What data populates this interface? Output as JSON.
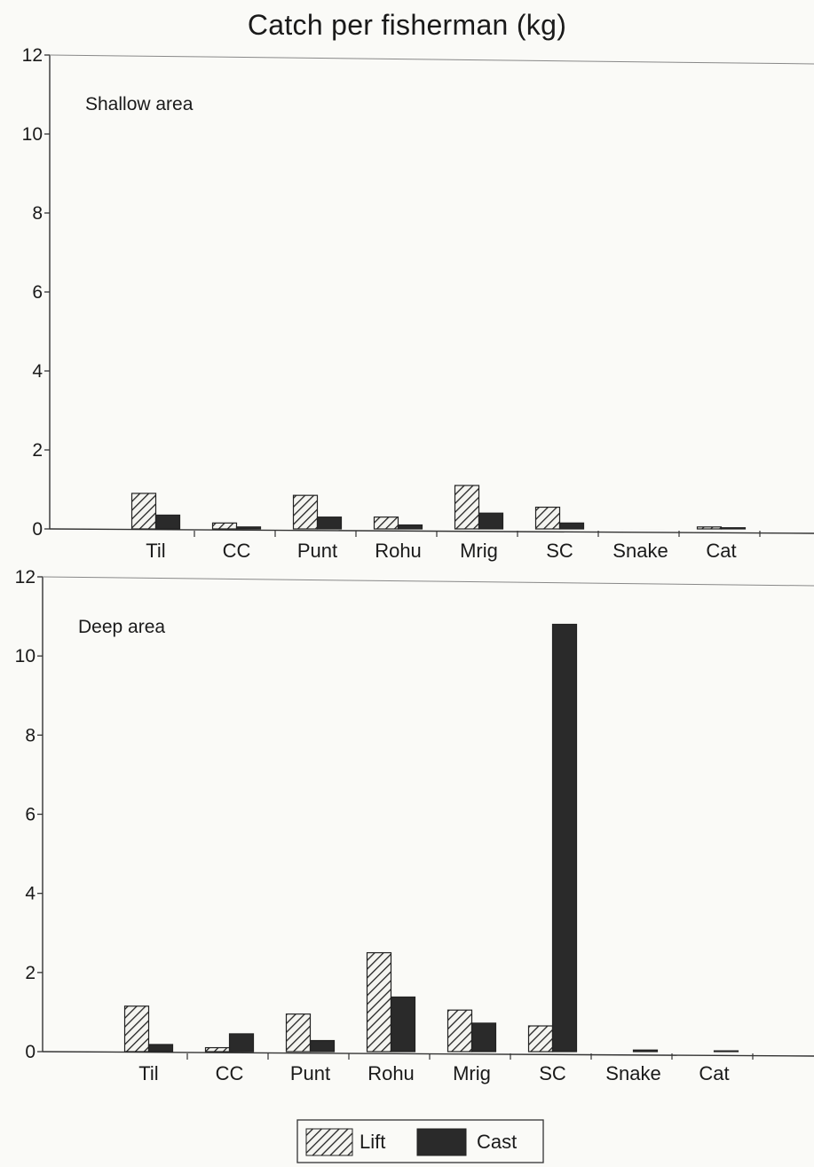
{
  "chart_data": {
    "title": "Catch per fisherman (kg)",
    "type": "bar",
    "categories": [
      "Til",
      "CC",
      "Punt",
      "Rohu",
      "Mrig",
      "SC",
      "Snake",
      "Cat"
    ],
    "ylim": [
      0,
      12
    ],
    "yticks": [
      0,
      2,
      4,
      6,
      8,
      10,
      12
    ],
    "grid": false,
    "legend_position": "bottom-center",
    "legend": [
      "Lift",
      "Cast"
    ],
    "colors": {
      "lift_hatch": "#222222",
      "cast_fill": "#2a2a2a"
    },
    "panels": [
      {
        "label": "Shallow area",
        "series": [
          {
            "name": "Lift",
            "values": [
              0.9,
              0.15,
              0.85,
              0.3,
              1.1,
              0.55,
              0.0,
              0.05
            ]
          },
          {
            "name": "Cast",
            "values": [
              0.35,
              0.05,
              0.3,
              0.1,
              0.4,
              0.15,
              0.0,
              0.03
            ]
          }
        ]
      },
      {
        "label": "Deep area",
        "series": [
          {
            "name": "Lift",
            "values": [
              1.15,
              0.1,
              0.95,
              2.5,
              1.05,
              0.65,
              0.0,
              0.0
            ]
          },
          {
            "name": "Cast",
            "values": [
              0.18,
              0.45,
              0.28,
              1.38,
              0.72,
              10.8,
              0.04,
              0.02
            ]
          }
        ]
      }
    ]
  }
}
